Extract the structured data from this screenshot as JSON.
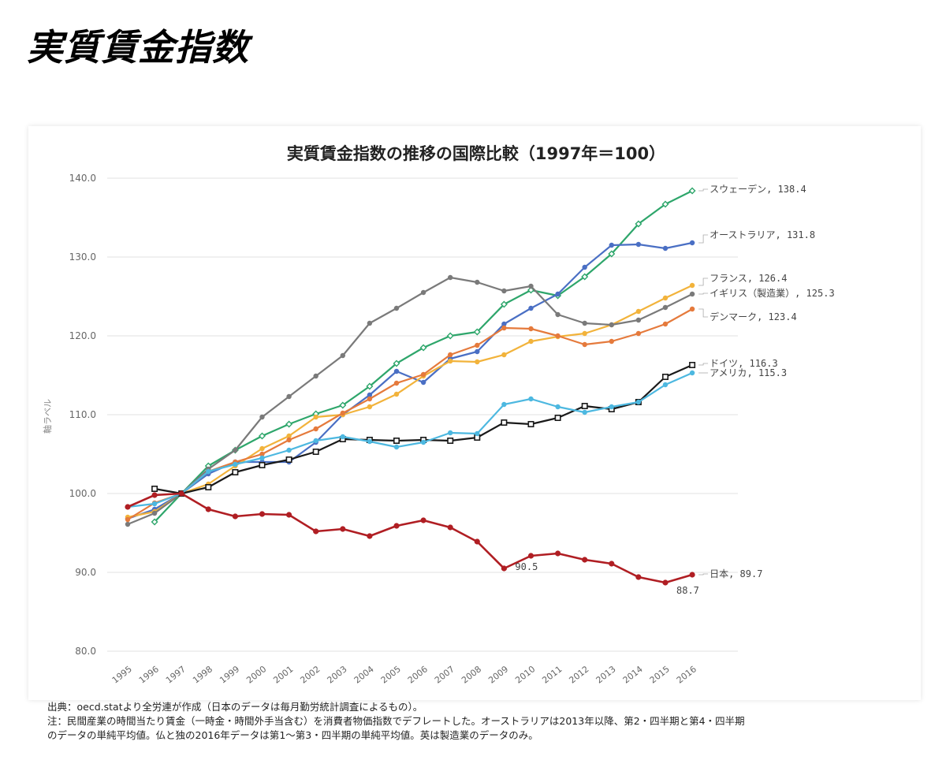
{
  "page": {
    "title": "実質賃金指数"
  },
  "chart_data": {
    "type": "line",
    "title": "実質賃金指数の推移の国際比較（1997年＝100）",
    "ylabel": "軸ラベル",
    "ylim": [
      80,
      140
    ],
    "ytick_labels": [
      "80.0",
      "90.0",
      "100.0",
      "110.0",
      "120.0",
      "130.0",
      "140.0"
    ],
    "categories": [
      "1995",
      "1996",
      "1997",
      "1998",
      "1999",
      "2000",
      "2001",
      "2002",
      "2003",
      "2004",
      "2005",
      "2006",
      "2007",
      "2008",
      "2009",
      "2010",
      "2011",
      "2012",
      "2013",
      "2014",
      "2015",
      "2016"
    ],
    "series": [
      {
        "name": "スウェーデン",
        "end_label": "スウェーデン, 138.4",
        "color": "#2ea66b",
        "marker": "diamond",
        "values": [
          null,
          96.4,
          100,
          103.5,
          105.5,
          107.3,
          108.8,
          110.1,
          111.2,
          113.6,
          116.5,
          118.5,
          120.0,
          120.5,
          124.0,
          125.8,
          125.1,
          127.5,
          130.4,
          134.2,
          136.7,
          138.4
        ]
      },
      {
        "name": "オーストラリア",
        "end_label": "オーストラリア, 131.8",
        "color": "#4a6fc4",
        "marker": "circle",
        "values": [
          96.8,
          98.0,
          100,
          102.5,
          104.0,
          104.0,
          104.0,
          106.5,
          110.0,
          112.5,
          115.5,
          114.1,
          117.1,
          118.0,
          121.5,
          123.5,
          125.3,
          128.7,
          131.5,
          131.6,
          131.1,
          131.8
        ]
      },
      {
        "name": "フランス",
        "end_label": "フランス, 126.4",
        "color": "#f2b33b",
        "marker": "circle",
        "values": [
          97.0,
          97.7,
          100,
          101.2,
          103.5,
          105.7,
          107.3,
          109.7,
          110.0,
          111.0,
          112.6,
          114.9,
          116.8,
          116.7,
          117.6,
          119.3,
          119.9,
          120.3,
          121.4,
          123.1,
          124.8,
          126.4
        ]
      },
      {
        "name": "イギリス（製造業）",
        "end_label": "イギリス（製造業）, 125.3",
        "color": "#7a7a7a",
        "marker": "circle",
        "values": [
          96.1,
          97.5,
          100,
          103.1,
          105.5,
          109.7,
          112.3,
          114.9,
          117.5,
          121.6,
          123.5,
          125.5,
          127.4,
          126.8,
          125.7,
          126.3,
          122.7,
          121.6,
          121.4,
          122.0,
          123.6,
          125.3
        ]
      },
      {
        "name": "デンマーク",
        "end_label": "デンマーク, 123.4",
        "color": "#e57a3c",
        "marker": "circle",
        "values": [
          96.7,
          98.8,
          100,
          102.8,
          104.0,
          105.0,
          106.8,
          108.2,
          110.2,
          112.0,
          114.0,
          115.1,
          117.6,
          118.8,
          121.0,
          120.9,
          120.0,
          118.9,
          119.3,
          120.3,
          121.5,
          123.4
        ]
      },
      {
        "name": "ドイツ",
        "end_label": "ドイツ, 116.3",
        "color": "#1a1a1a",
        "marker": "square",
        "values": [
          null,
          100.6,
          100,
          100.8,
          102.7,
          103.6,
          104.3,
          105.3,
          106.9,
          106.8,
          106.7,
          106.8,
          106.7,
          107.1,
          109.0,
          108.8,
          109.6,
          111.1,
          110.7,
          111.6,
          114.8,
          116.3
        ]
      },
      {
        "name": "アメリカ",
        "end_label": "アメリカ, 115.3",
        "color": "#4db8e0",
        "marker": "circle",
        "values": [
          98.3,
          98.7,
          100,
          102.8,
          103.7,
          104.5,
          105.5,
          106.7,
          107.2,
          106.6,
          105.9,
          106.5,
          107.7,
          107.6,
          111.3,
          112.0,
          111.0,
          110.3,
          111.0,
          111.6,
          113.8,
          115.3
        ]
      },
      {
        "name": "日本",
        "end_label": "日本, 89.7",
        "color": "#b01e23",
        "marker": "circle",
        "values": [
          98.3,
          99.8,
          100,
          98.0,
          97.1,
          97.4,
          97.3,
          95.2,
          95.5,
          94.6,
          95.9,
          96.6,
          95.7,
          93.9,
          90.5,
          92.1,
          92.4,
          91.6,
          91.1,
          89.4,
          88.7,
          89.7
        ]
      }
    ],
    "annotations": [
      "90.5",
      "88.7"
    ],
    "legend": "end-of-line labels",
    "grid": "horizontal"
  },
  "notes": {
    "line1": "出典：oecd.statより全労連が作成（日本のデータは毎月勤労統計調査によるもの）。",
    "line2": "注：民間産業の時間当たり賃金（一時金・時間外手当含む）を消費者物価指数でデフレートした。オーストラリアは2013年以降、第2・四半期と第4・四半期",
    "line3": "のデータの単純平均値。仏と独の2016年データは第1～第3・四半期の単純平均値。英は製造業のデータのみ。"
  }
}
